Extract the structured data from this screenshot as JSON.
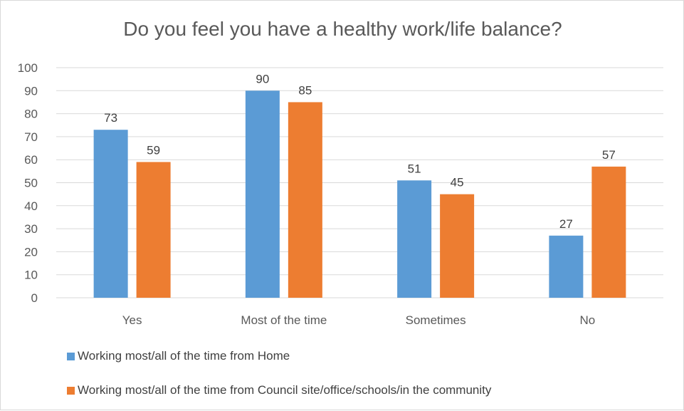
{
  "chart_data": {
    "type": "bar",
    "title": "Do you feel you have a healthy work/life balance?",
    "categories": [
      "Yes",
      "Most of the time",
      "Sometimes",
      "No"
    ],
    "series": [
      {
        "name": "Working most/all of the time from Home",
        "values": [
          73,
          90,
          51,
          27
        ],
        "color": "#5b9bd5"
      },
      {
        "name": "Working most/all of the time from Council site/office/schools/in the community",
        "values": [
          59,
          85,
          45,
          57
        ],
        "color": "#ed7d31"
      }
    ],
    "xlabel": "",
    "ylabel": "",
    "ylim": [
      0,
      100
    ],
    "yticks": [
      0,
      10,
      20,
      30,
      40,
      50,
      60,
      70,
      80,
      90,
      100
    ],
    "grid": true,
    "data_labels": true,
    "legend_position": "bottom-left"
  }
}
